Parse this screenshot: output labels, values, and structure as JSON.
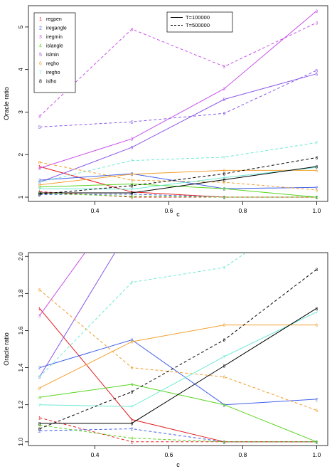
{
  "chart_data": [
    {
      "type": "line",
      "xlabel": "c",
      "ylabel": "Oracle ratio",
      "x": [
        0.25,
        0.5,
        0.75,
        1.0
      ],
      "xlim": [
        0.25,
        1.0
      ],
      "ylim": [
        0.9,
        5.5
      ],
      "xticks": [
        "0.4",
        "0.6",
        "0.8",
        "1.0"
      ],
      "yticks": [
        "1",
        "2",
        "3",
        "4",
        "5"
      ],
      "legend_methods": [
        {
          "marker": "1",
          "name": "regpen",
          "color": "#e41a1c"
        },
        {
          "marker": "2",
          "name": "iregangle",
          "color": "#3f5fe8"
        },
        {
          "marker": "3",
          "name": "iregmin",
          "color": "#c84fe8"
        },
        {
          "marker": "4",
          "name": "islangle",
          "color": "#59d41f"
        },
        {
          "marker": "5",
          "name": "islmin",
          "color": "#8a59e8"
        },
        {
          "marker": "6",
          "name": "regho",
          "color": "#f0a030"
        },
        {
          "marker": "7",
          "name": "iregho",
          "color": "#6eead4"
        },
        {
          "marker": "8",
          "name": "islho",
          "color": "#000000"
        }
      ],
      "legend_lines": [
        {
          "name": "T=100000",
          "dash": "solid"
        },
        {
          "name": "T=500000",
          "dash": "dashed"
        }
      ],
      "series": [
        {
          "marker": "1",
          "color": "#e41a1c",
          "dash": "solid",
          "values": [
            1.72,
            1.12,
            1.0,
            1.0
          ]
        },
        {
          "marker": "1",
          "color": "#e41a1c",
          "dash": "dashed",
          "values": [
            1.13,
            1.0,
            1.0,
            1.0
          ]
        },
        {
          "marker": "2",
          "color": "#3f5fe8",
          "dash": "solid",
          "values": [
            1.4,
            1.55,
            1.2,
            1.23
          ]
        },
        {
          "marker": "2",
          "color": "#3f5fe8",
          "dash": "dashed",
          "values": [
            1.06,
            1.07,
            1.0,
            1.0
          ]
        },
        {
          "marker": "3",
          "color": "#c84fe8",
          "dash": "solid",
          "values": [
            1.68,
            2.37,
            3.55,
            5.38
          ]
        },
        {
          "marker": "3",
          "color": "#c84fe8",
          "dash": "dashed",
          "values": [
            2.9,
            4.95,
            4.07,
            5.1
          ]
        },
        {
          "marker": "4",
          "color": "#59d41f",
          "dash": "solid",
          "values": [
            1.24,
            1.31,
            1.2,
            1.0
          ]
        },
        {
          "marker": "4",
          "color": "#59d41f",
          "dash": "dashed",
          "values": [
            1.09,
            1.02,
            1.0,
            1.0
          ]
        },
        {
          "marker": "5",
          "color": "#8a59e8",
          "dash": "solid",
          "values": [
            1.35,
            2.17,
            3.3,
            3.9
          ]
        },
        {
          "marker": "5",
          "color": "#8a59e8",
          "dash": "dashed",
          "values": [
            2.65,
            2.77,
            2.97,
            3.98
          ]
        },
        {
          "marker": "6",
          "color": "#f0a030",
          "dash": "solid",
          "values": [
            1.29,
            1.54,
            1.63,
            1.63
          ]
        },
        {
          "marker": "6",
          "color": "#f0a030",
          "dash": "dashed",
          "values": [
            1.82,
            1.4,
            1.35,
            1.17
          ]
        },
        {
          "marker": "7",
          "color": "#6eead4",
          "dash": "solid",
          "values": [
            1.2,
            1.19,
            1.46,
            1.7
          ]
        },
        {
          "marker": "7",
          "color": "#6eead4",
          "dash": "dashed",
          "values": [
            1.35,
            1.86,
            1.94,
            2.28
          ]
        },
        {
          "marker": "8",
          "color": "#000000",
          "dash": "solid",
          "values": [
            1.1,
            1.1,
            1.41,
            1.72
          ]
        },
        {
          "marker": "8",
          "color": "#000000",
          "dash": "dashed",
          "values": [
            1.07,
            1.27,
            1.55,
            1.93
          ]
        }
      ]
    },
    {
      "type": "line",
      "xlabel": "c",
      "ylabel": "Oracle ratio",
      "x": [
        0.25,
        0.5,
        0.75,
        1.0
      ],
      "xlim": [
        0.25,
        1.0
      ],
      "ylim": [
        0.98,
        2.02
      ],
      "xticks": [
        "0.4",
        "0.6",
        "0.8",
        "1.0"
      ],
      "yticks": [
        "1.0",
        "1.2",
        "1.4",
        "1.6",
        "1.8",
        "2.0"
      ],
      "note": "same series as above, zoomed y-axis"
    }
  ]
}
